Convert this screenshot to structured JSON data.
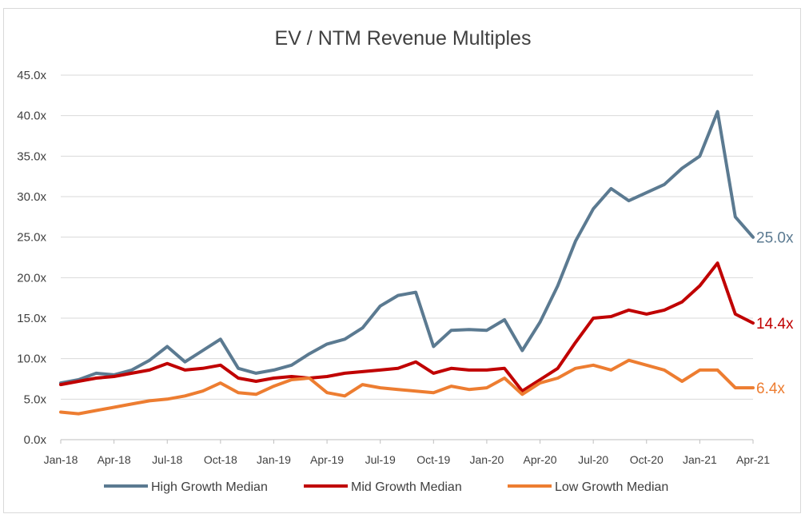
{
  "chart_data": {
    "type": "line",
    "title": "EV / NTM Revenue Multiples",
    "xlabel": "",
    "ylabel": "",
    "ylim": [
      0,
      45
    ],
    "y_ticks": [
      "0.0x",
      "5.0x",
      "10.0x",
      "15.0x",
      "20.0x",
      "25.0x",
      "30.0x",
      "35.0x",
      "40.0x",
      "45.0x"
    ],
    "x_ticks": [
      "Jan-18",
      "Apr-18",
      "Jul-18",
      "Oct-18",
      "Jan-19",
      "Apr-19",
      "Jul-19",
      "Oct-19",
      "Jan-20",
      "Apr-20",
      "Jul-20",
      "Oct-20",
      "Jan-21",
      "Apr-21"
    ],
    "grid": "horizontal",
    "legend_position": "bottom",
    "series": [
      {
        "name": "High Growth Median",
        "color": "#5B7A91",
        "end_label": "25.0x",
        "points": [
          [
            "Jan-18",
            7.0
          ],
          [
            "Feb-18",
            7.4
          ],
          [
            "Mar-18",
            8.2
          ],
          [
            "Apr-18",
            8.0
          ],
          [
            "May-18",
            8.6
          ],
          [
            "Jun-18",
            9.8
          ],
          [
            "Jul-18",
            11.5
          ],
          [
            "Aug-18",
            9.6
          ],
          [
            "Sep-18",
            11.0
          ],
          [
            "Oct-18",
            12.4
          ],
          [
            "Nov-18",
            8.8
          ],
          [
            "Dec-18",
            8.2
          ],
          [
            "Jan-19",
            8.6
          ],
          [
            "Feb-19",
            9.2
          ],
          [
            "Mar-19",
            10.6
          ],
          [
            "Apr-19",
            11.8
          ],
          [
            "May-19",
            12.4
          ],
          [
            "Jun-19",
            13.8
          ],
          [
            "Jul-19",
            16.5
          ],
          [
            "Aug-19",
            17.8
          ],
          [
            "Sep-19",
            18.2
          ],
          [
            "Oct-19",
            11.5
          ],
          [
            "Nov-19",
            13.5
          ],
          [
            "Dec-19",
            13.6
          ],
          [
            "Jan-20",
            13.5
          ],
          [
            "Feb-20",
            14.8
          ],
          [
            "Mar-20",
            11.0
          ],
          [
            "Apr-20",
            14.5
          ],
          [
            "May-20",
            19.0
          ],
          [
            "Jun-20",
            24.5
          ],
          [
            "Jul-20",
            28.5
          ],
          [
            "Aug-20",
            31.0
          ],
          [
            "Sep-20",
            29.5
          ],
          [
            "Oct-20",
            30.5
          ],
          [
            "Nov-20",
            31.5
          ],
          [
            "Dec-20",
            33.5
          ],
          [
            "Jan-21",
            35.0
          ],
          [
            "Feb-21",
            40.5
          ],
          [
            "Mar-21",
            27.5
          ],
          [
            "Apr-21",
            25.0
          ]
        ]
      },
      {
        "name": "Mid Growth Median",
        "color": "#C00000",
        "end_label": "14.4x",
        "points": [
          [
            "Jan-18",
            6.8
          ],
          [
            "Feb-18",
            7.2
          ],
          [
            "Mar-18",
            7.6
          ],
          [
            "Apr-18",
            7.8
          ],
          [
            "May-18",
            8.2
          ],
          [
            "Jun-18",
            8.6
          ],
          [
            "Jul-18",
            9.4
          ],
          [
            "Aug-18",
            8.6
          ],
          [
            "Sep-18",
            8.8
          ],
          [
            "Oct-18",
            9.2
          ],
          [
            "Nov-18",
            7.6
          ],
          [
            "Dec-18",
            7.2
          ],
          [
            "Jan-19",
            7.6
          ],
          [
            "Feb-19",
            7.8
          ],
          [
            "Mar-19",
            7.6
          ],
          [
            "Apr-19",
            7.8
          ],
          [
            "May-19",
            8.2
          ],
          [
            "Jun-19",
            8.4
          ],
          [
            "Jul-19",
            8.6
          ],
          [
            "Aug-19",
            8.8
          ],
          [
            "Sep-19",
            9.6
          ],
          [
            "Oct-19",
            8.2
          ],
          [
            "Nov-19",
            8.8
          ],
          [
            "Dec-19",
            8.6
          ],
          [
            "Jan-20",
            8.6
          ],
          [
            "Feb-20",
            8.8
          ],
          [
            "Mar-20",
            6.0
          ],
          [
            "Apr-20",
            7.4
          ],
          [
            "May-20",
            8.8
          ],
          [
            "Jun-20",
            12.0
          ],
          [
            "Jul-20",
            15.0
          ],
          [
            "Aug-20",
            15.2
          ],
          [
            "Sep-20",
            16.0
          ],
          [
            "Oct-20",
            15.5
          ],
          [
            "Nov-20",
            16.0
          ],
          [
            "Dec-20",
            17.0
          ],
          [
            "Jan-21",
            19.0
          ],
          [
            "Feb-21",
            21.8
          ],
          [
            "Mar-21",
            15.5
          ],
          [
            "Apr-21",
            14.4
          ]
        ]
      },
      {
        "name": "Low Growth Median",
        "color": "#ED7D31",
        "end_label": "6.4x",
        "points": [
          [
            "Jan-18",
            3.4
          ],
          [
            "Feb-18",
            3.2
          ],
          [
            "Mar-18",
            3.6
          ],
          [
            "Apr-18",
            4.0
          ],
          [
            "May-18",
            4.4
          ],
          [
            "Jun-18",
            4.8
          ],
          [
            "Jul-18",
            5.0
          ],
          [
            "Aug-18",
            5.4
          ],
          [
            "Sep-18",
            6.0
          ],
          [
            "Oct-18",
            7.0
          ],
          [
            "Nov-18",
            5.8
          ],
          [
            "Dec-18",
            5.6
          ],
          [
            "Jan-19",
            6.6
          ],
          [
            "Feb-19",
            7.4
          ],
          [
            "Mar-19",
            7.6
          ],
          [
            "Apr-19",
            5.8
          ],
          [
            "May-19",
            5.4
          ],
          [
            "Jun-19",
            6.8
          ],
          [
            "Jul-19",
            6.4
          ],
          [
            "Aug-19",
            6.2
          ],
          [
            "Sep-19",
            6.0
          ],
          [
            "Oct-19",
            5.8
          ],
          [
            "Nov-19",
            6.6
          ],
          [
            "Dec-19",
            6.2
          ],
          [
            "Jan-20",
            6.4
          ],
          [
            "Feb-20",
            7.6
          ],
          [
            "Mar-20",
            5.6
          ],
          [
            "Apr-20",
            7.0
          ],
          [
            "May-20",
            7.6
          ],
          [
            "Jun-20",
            8.8
          ],
          [
            "Jul-20",
            9.2
          ],
          [
            "Aug-20",
            8.6
          ],
          [
            "Sep-20",
            9.8
          ],
          [
            "Oct-20",
            9.2
          ],
          [
            "Nov-20",
            8.6
          ],
          [
            "Dec-20",
            7.2
          ],
          [
            "Jan-21",
            8.6
          ],
          [
            "Feb-21",
            8.6
          ],
          [
            "Mar-21",
            6.4
          ],
          [
            "Apr-21",
            6.4
          ]
        ]
      }
    ]
  }
}
